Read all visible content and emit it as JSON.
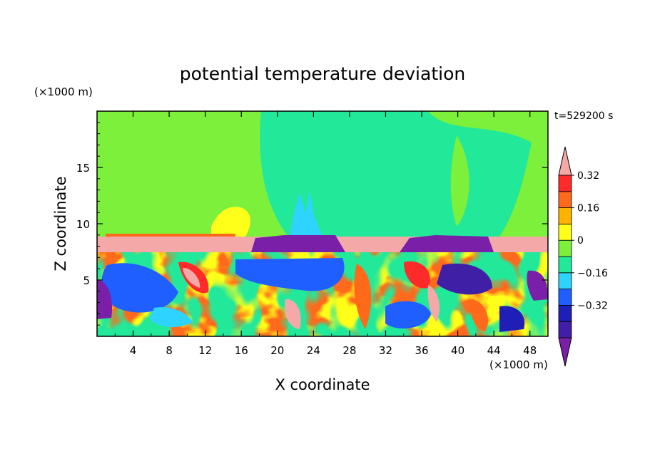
{
  "chart_data": {
    "type": "heatmap",
    "title": "potential temperature deviation",
    "xlabel": "X coordinate",
    "ylabel": "Z coordinate",
    "x_unit": "(×1000 m)",
    "y_unit": "(×1000 m)",
    "time_label": "t=529200 s",
    "xlim": [
      0,
      50
    ],
    "ylim": [
      0,
      20
    ],
    "x_ticks": [
      4,
      8,
      12,
      16,
      20,
      24,
      28,
      32,
      36,
      40,
      44,
      48
    ],
    "y_ticks": [
      5,
      10,
      15
    ],
    "colorbar": {
      "levels": [
        -0.48,
        -0.4,
        -0.32,
        -0.24,
        -0.16,
        -0.08,
        0,
        0.08,
        0.16,
        0.24,
        0.32,
        0.4
      ],
      "colors": [
        "#7a1fa8",
        "#3f1fa6",
        "#1f1fb8",
        "#1f5fff",
        "#2fd3ff",
        "#22e89a",
        "#7cf03a",
        "#ffff1a",
        "#ffb300",
        "#ff6a1a",
        "#ff2a2a",
        "#f4a8a8"
      ],
      "labels": [
        "0.32",
        "0.16",
        "0",
        "−0.16",
        "−0.32"
      ],
      "label_values": [
        0.32,
        0.16,
        0,
        -0.16,
        -0.32
      ]
    },
    "layers": [
      {
        "z_range": [
          9.8,
          20
        ],
        "value": 0.04
      },
      {
        "z_range": [
          8.9,
          9.0
        ],
        "value": 0.32
      },
      {
        "z_range": [
          7.7,
          8.9
        ],
        "value": 0.44
      },
      {
        "z_range": [
          0,
          7.7
        ],
        "value": "turbulent mixed field, -0.48 to 0.44"
      }
    ]
  }
}
